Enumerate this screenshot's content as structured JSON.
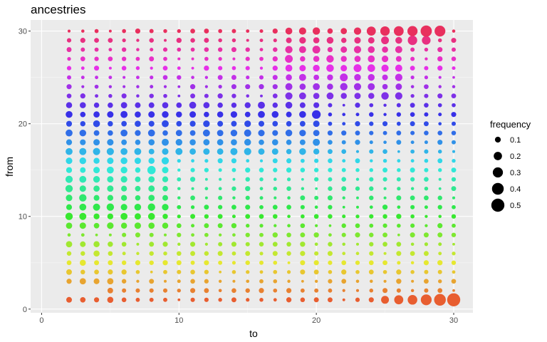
{
  "chart_data": {
    "type": "scatter",
    "title": "ancestries",
    "xlabel": "to",
    "ylabel": "from",
    "xlim": [
      -0.8,
      31.4
    ],
    "ylim": [
      -0.4,
      31.2
    ],
    "x_ticks": [
      0,
      10,
      20,
      30
    ],
    "y_ticks": [
      0,
      10,
      20,
      30
    ],
    "grid": true,
    "size_legend": {
      "title": "frequency",
      "values": [
        0.1,
        0.2,
        0.3,
        0.4,
        0.5
      ],
      "placement": "right"
    },
    "color_by": "from",
    "color_scale": "hue gradient: low from = red/orange, mid = green/cyan, high = blue/violet/pink",
    "x_range": [
      2,
      30
    ],
    "y_range": [
      1,
      30
    ],
    "high_frequency_points": [
      {
        "to": 30,
        "from": 1,
        "frequency": 0.5
      },
      {
        "to": 29,
        "from": 1,
        "frequency": 0.4
      },
      {
        "to": 28,
        "from": 1,
        "frequency": 0.34
      },
      {
        "to": 27,
        "from": 1,
        "frequency": 0.27
      },
      {
        "to": 26,
        "from": 1,
        "frequency": 0.24
      },
      {
        "to": 25,
        "from": 1,
        "frequency": 0.18
      },
      {
        "to": 29,
        "from": 30,
        "frequency": 0.34
      },
      {
        "to": 28,
        "from": 30,
        "frequency": 0.37
      },
      {
        "to": 27,
        "from": 30,
        "frequency": 0.3
      },
      {
        "to": 26,
        "from": 30,
        "frequency": 0.28
      },
      {
        "to": 25,
        "from": 30,
        "frequency": 0.26
      },
      {
        "to": 24,
        "from": 30,
        "frequency": 0.24
      },
      {
        "to": 27,
        "from": 29,
        "frequency": 0.26
      },
      {
        "to": 28,
        "from": 29,
        "frequency": 0.22
      },
      {
        "to": 20,
        "from": 21,
        "frequency": 0.22
      },
      {
        "to": 8,
        "from": 15,
        "frequency": 0.2
      }
    ]
  }
}
